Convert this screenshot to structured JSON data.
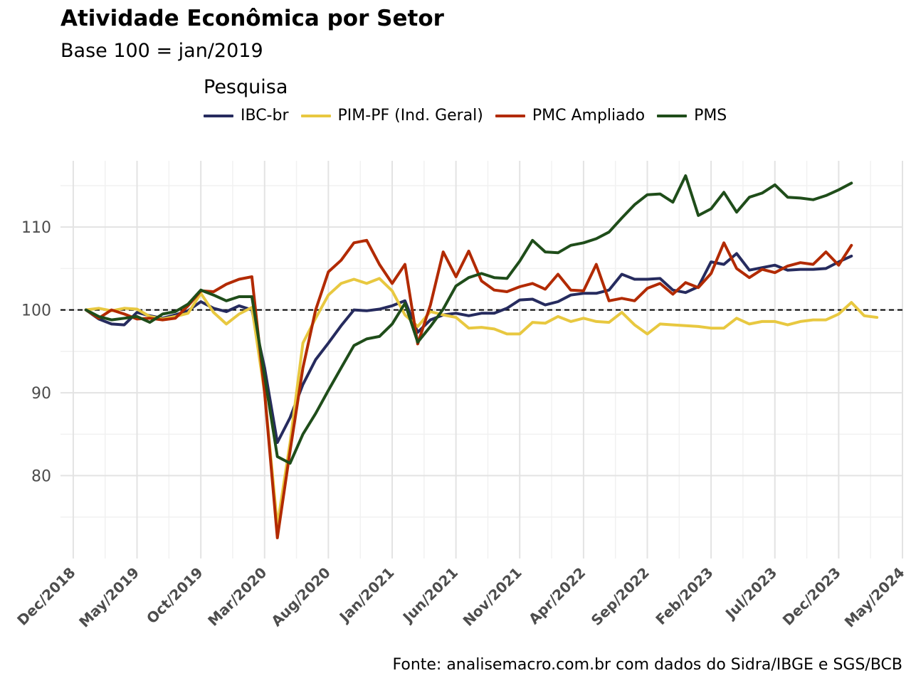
{
  "chart_data": {
    "type": "line",
    "title": "Atividade Econômica por Setor",
    "subtitle": "Base 100 = jan/2019",
    "legend_title": "Pesquisa",
    "legend_position": "top",
    "caption": "Fonte: analisemacro.com.br com dados do Sidra/IBGE e SGS/BCB",
    "x_tick_labels": [
      "Dec/2018",
      "May/2019",
      "Oct/2019",
      "Mar/2020",
      "Aug/2020",
      "Jan/2021",
      "Jun/2021",
      "Nov/2021",
      "Apr/2022",
      "Sep/2022",
      "Feb/2023",
      "Jul/2023",
      "Dec/2023",
      "May/2024"
    ],
    "y_ticks": [
      80,
      90,
      100,
      110
    ],
    "ylim": [
      70,
      118
    ],
    "x_range": [
      "2018-11",
      "2024-05"
    ],
    "grid": true,
    "reference_line": {
      "y": 100,
      "style": "dashed"
    },
    "x_start": "2019-01",
    "series": [
      {
        "name": "IBC-br",
        "color": "#262B5E",
        "values": [
          100,
          98.9,
          98.3,
          98.2,
          99.7,
          99.3,
          99.0,
          99.4,
          99.9,
          101.0,
          100.2,
          99.8,
          100.5,
          100.0,
          93.0,
          84.0,
          87.0,
          91.0,
          94.0,
          96.0,
          98.1,
          100.0,
          99.9,
          100.1,
          100.5,
          101.1,
          97.3,
          98.8,
          99.4,
          99.6,
          99.3,
          99.6,
          99.6,
          100.2,
          101.2,
          101.3,
          100.6,
          101.0,
          101.8,
          102.0,
          102.0,
          102.4,
          104.3,
          103.7,
          103.7,
          103.8,
          102.4,
          102.1,
          102.8,
          105.8,
          105.5,
          106.8,
          104.8,
          105.1,
          105.4,
          104.8,
          104.9,
          104.9,
          105.0,
          105.8,
          106.5
        ]
      },
      {
        "name": "PIM-PF (Ind. Geral)",
        "color": "#E8C840",
        "values": [
          100,
          100.2,
          99.9,
          100.2,
          100.1,
          99.2,
          98.9,
          99.2,
          99.6,
          102.0,
          99.7,
          98.3,
          99.5,
          100.3,
          90.0,
          74.0,
          84.0,
          96.0,
          99.0,
          101.8,
          103.2,
          103.7,
          103.2,
          103.8,
          102.3,
          99.4,
          98.0,
          99.8,
          99.4,
          99.1,
          97.8,
          97.9,
          97.7,
          97.1,
          97.1,
          98.5,
          98.4,
          99.2,
          98.6,
          99.0,
          98.6,
          98.5,
          99.7,
          98.2,
          97.1,
          98.3,
          98.2,
          98.1,
          98.0,
          97.8,
          97.8,
          99.0,
          98.3,
          98.6,
          98.6,
          98.2,
          98.6,
          98.8,
          98.8,
          99.5,
          100.9,
          99.3,
          99.1
        ]
      },
      {
        "name": "PMC Ampliado",
        "color": "#B22A00",
        "values": [
          100,
          99.0,
          100.0,
          99.5,
          98.9,
          99.0,
          98.8,
          99.0,
          100.5,
          102.3,
          102.2,
          103.1,
          103.7,
          104.0,
          90.0,
          72.5,
          83.0,
          93.0,
          100.0,
          104.6,
          106.0,
          108.1,
          108.4,
          105.5,
          103.2,
          105.5,
          95.9,
          100.6,
          107.0,
          104.0,
          107.1,
          103.5,
          102.4,
          102.2,
          102.8,
          103.2,
          102.5,
          104.3,
          102.4,
          102.3,
          105.5,
          101.1,
          101.4,
          101.1,
          102.6,
          103.2,
          101.9,
          103.3,
          102.7,
          104.4,
          108.1,
          105.0,
          103.9,
          104.9,
          104.5,
          105.3,
          105.7,
          105.5,
          107.0,
          105.4,
          107.8
        ]
      },
      {
        "name": "PMS",
        "color": "#1F4D1A",
        "values": [
          100,
          99.2,
          98.8,
          99.0,
          99.2,
          98.5,
          99.5,
          99.8,
          100.7,
          102.4,
          101.8,
          101.1,
          101.6,
          101.6,
          92.0,
          82.3,
          81.5,
          85.0,
          87.5,
          90.3,
          93.0,
          95.7,
          96.5,
          96.8,
          98.3,
          100.8,
          96.1,
          98.0,
          100.1,
          102.9,
          103.9,
          104.4,
          103.9,
          103.8,
          105.9,
          108.4,
          107.0,
          106.9,
          107.8,
          108.1,
          108.6,
          109.4,
          111.1,
          112.7,
          113.9,
          114.0,
          113.0,
          116.2,
          111.4,
          112.2,
          114.2,
          111.8,
          113.6,
          114.1,
          115.1,
          113.6,
          113.5,
          113.3,
          113.8,
          114.5,
          115.3
        ]
      }
    ]
  }
}
